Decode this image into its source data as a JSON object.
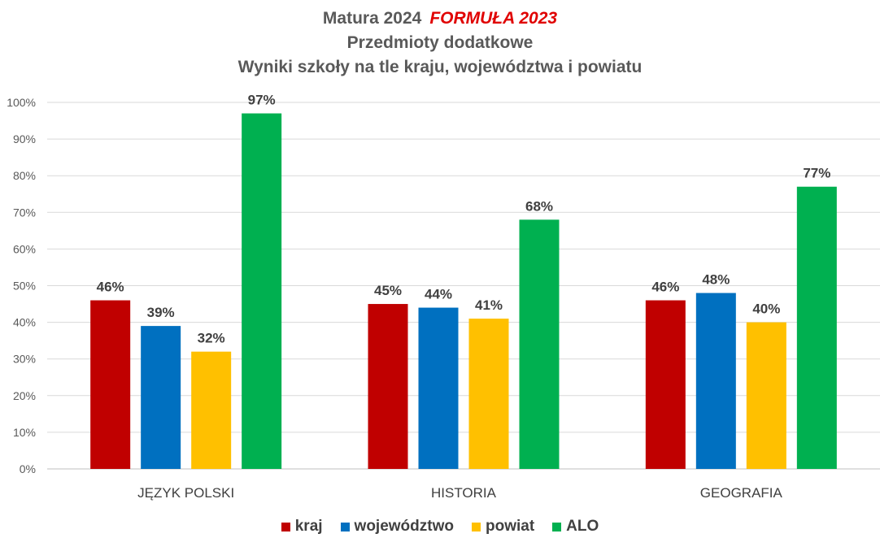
{
  "title": {
    "line1_main": "Matura 2024",
    "line1_highlight": "FORMUŁA 2023",
    "line2": "Przedmioty dodatkowe",
    "line3": "Wyniki szkoły na tle kraju, województwa i powiatu",
    "highlight_color": "#e00000"
  },
  "chart_data": {
    "type": "bar",
    "title": "Matura 2024 FORMUŁA 2023 — Przedmioty dodatkowe — Wyniki szkoły na tle kraju, województwa i powiatu",
    "categories": [
      "JĘZYK POLSKI",
      "HISTORIA",
      "GEOGRAFIA"
    ],
    "series": [
      {
        "name": "kraj",
        "color": "#c00000",
        "values": [
          46,
          45,
          46
        ]
      },
      {
        "name": "województwo",
        "color": "#0070c0",
        "values": [
          39,
          44,
          48
        ]
      },
      {
        "name": "powiat",
        "color": "#ffc000",
        "values": [
          32,
          41,
          40
        ]
      },
      {
        "name": "ALO",
        "color": "#00b050",
        "values": [
          97,
          68,
          77
        ]
      }
    ],
    "ylim": [
      0,
      100
    ],
    "yticks": [
      "0%",
      "10%",
      "20%",
      "30%",
      "40%",
      "50%",
      "60%",
      "70%",
      "80%",
      "90%",
      "100%"
    ],
    "value_suffix": "%",
    "grid": true,
    "legend": "bottom"
  }
}
